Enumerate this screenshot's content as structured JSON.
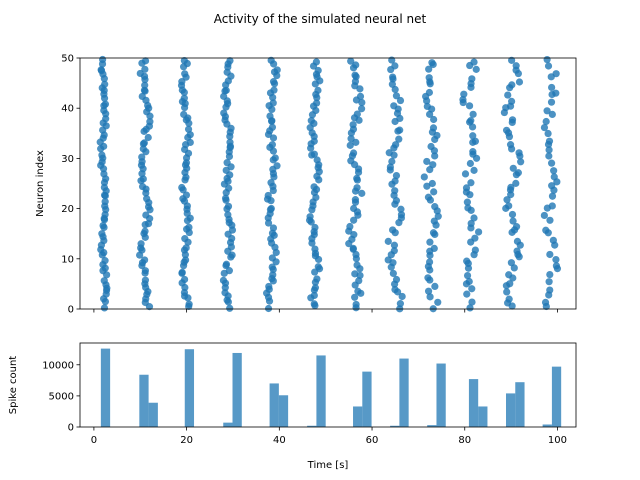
{
  "chart_data": [
    {
      "type": "scatter",
      "title": "Activity of the simulated neural net",
      "xlabel": "",
      "ylabel": "Neuron index",
      "xlim": [
        -3,
        104
      ],
      "ylim": [
        0,
        50
      ],
      "xticks": [
        0,
        20,
        40,
        60,
        80,
        100
      ],
      "xtick_labels_shown": false,
      "yticks": [
        0,
        10,
        20,
        30,
        40,
        50
      ],
      "ytick_labels": [
        "0",
        "10",
        "20",
        "30",
        "40",
        "50"
      ],
      "color": "#1f77b4",
      "grid": false,
      "burst_times_s": [
        2.0,
        11.0,
        19.6,
        29.3,
        38.7,
        47.5,
        56.8,
        65.2,
        72.8,
        81.6,
        90.0,
        98.8
      ],
      "burst_spread_s": [
        0.9,
        1.2,
        1.1,
        1.2,
        1.3,
        1.3,
        1.6,
        1.8,
        1.8,
        2.0,
        2.0,
        1.6
      ],
      "points_per_burst": [
        64,
        62,
        62,
        62,
        60,
        60,
        58,
        52,
        50,
        48,
        52,
        42
      ],
      "ytick_text": [
        "0",
        "10",
        "20",
        "30",
        "40",
        "50"
      ]
    },
    {
      "type": "bar",
      "xlabel": "Time [s]",
      "ylabel": "Spike count",
      "xlim": [
        -3,
        104
      ],
      "ylim": [
        0,
        13500
      ],
      "xticks": [
        0,
        20,
        40,
        60,
        80,
        100
      ],
      "xtick_labels": [
        "0",
        "20",
        "40",
        "60",
        "80",
        "100"
      ],
      "yticks": [
        0,
        5000,
        10000
      ],
      "ytick_labels": [
        "0",
        "5000",
        "10000"
      ],
      "color": "#1f77b4",
      "bin_width_s": 2,
      "bins": [
        {
          "x": 1.5,
          "value": 12600
        },
        {
          "x": 9.8,
          "value": 8400
        },
        {
          "x": 11.8,
          "value": 3900
        },
        {
          "x": 19.6,
          "value": 12500
        },
        {
          "x": 27.9,
          "value": 700
        },
        {
          "x": 29.9,
          "value": 11900
        },
        {
          "x": 37.9,
          "value": 7000
        },
        {
          "x": 39.9,
          "value": 5100
        },
        {
          "x": 46.0,
          "value": 200
        },
        {
          "x": 48.0,
          "value": 11500
        },
        {
          "x": 55.9,
          "value": 3300
        },
        {
          "x": 57.9,
          "value": 8900
        },
        {
          "x": 63.9,
          "value": 200
        },
        {
          "x": 65.9,
          "value": 11000
        },
        {
          "x": 71.9,
          "value": 300
        },
        {
          "x": 73.9,
          "value": 10200
        },
        {
          "x": 80.9,
          "value": 7700
        },
        {
          "x": 82.9,
          "value": 3300
        },
        {
          "x": 88.9,
          "value": 5400
        },
        {
          "x": 90.9,
          "value": 7200
        },
        {
          "x": 96.8,
          "value": 400
        },
        {
          "x": 98.8,
          "value": 9700
        }
      ]
    }
  ]
}
